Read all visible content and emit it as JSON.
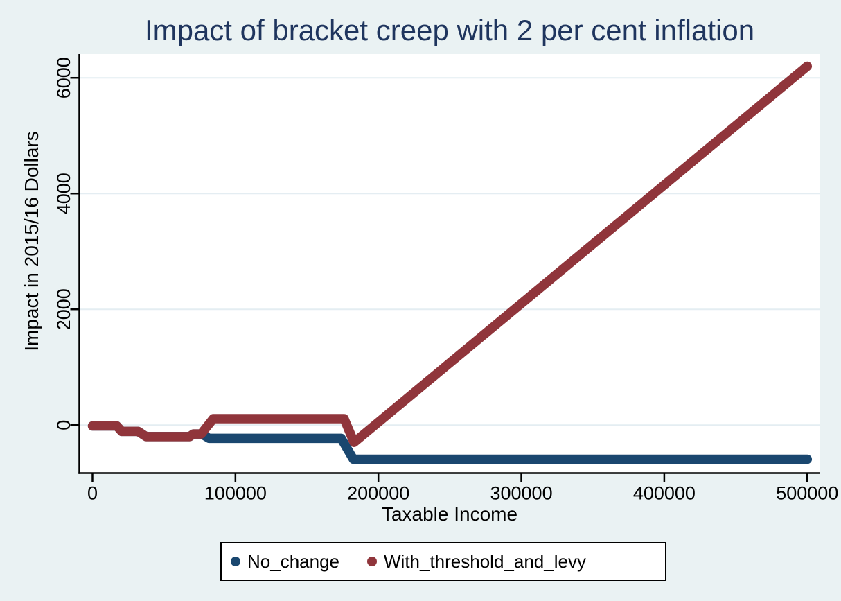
{
  "colors": {
    "background": "#eaf2f3",
    "plot_background": "#ffffff",
    "grid": "#e4edf2",
    "axis": "#000000",
    "tick_text": "#000000",
    "title": "#1f355e",
    "legend_border": "#000000",
    "navy": "#1a476f",
    "maroon": "#90353b"
  },
  "chart_data": {
    "type": "line",
    "title": "Impact of bracket creep with 2 per cent inflation",
    "xlabel": "Taxable Income",
    "ylabel": "Impact in 2015/16 Dollars",
    "x_ticks": [
      0,
      100000,
      200000,
      300000,
      400000,
      500000
    ],
    "y_ticks": [
      0,
      2000,
      4000,
      6000
    ],
    "xlim": [
      -9200,
      508600
    ],
    "ylim": [
      -830,
      6410
    ],
    "grid": true,
    "legend_position": "bottom",
    "series": [
      {
        "name": "No_change",
        "color": "#1a476f",
        "points": [
          [
            0,
            -15
          ],
          [
            17000,
            -15
          ],
          [
            20500,
            -110
          ],
          [
            32000,
            -110
          ],
          [
            37500,
            -200
          ],
          [
            68000,
            -200
          ],
          [
            70500,
            -155
          ],
          [
            76500,
            -155
          ],
          [
            81500,
            -230
          ],
          [
            174000,
            -230
          ],
          [
            182500,
            -590
          ],
          [
            500000,
            -590
          ]
        ]
      },
      {
        "name": "With_threshold_and_levy",
        "color": "#90353b",
        "points": [
          [
            0,
            -15
          ],
          [
            17000,
            -15
          ],
          [
            20500,
            -110
          ],
          [
            32000,
            -110
          ],
          [
            37500,
            -200
          ],
          [
            68000,
            -200
          ],
          [
            70500,
            -155
          ],
          [
            76000,
            -155
          ],
          [
            84500,
            110
          ],
          [
            176000,
            110
          ],
          [
            183000,
            -300
          ],
          [
            500000,
            6200
          ]
        ]
      }
    ]
  }
}
